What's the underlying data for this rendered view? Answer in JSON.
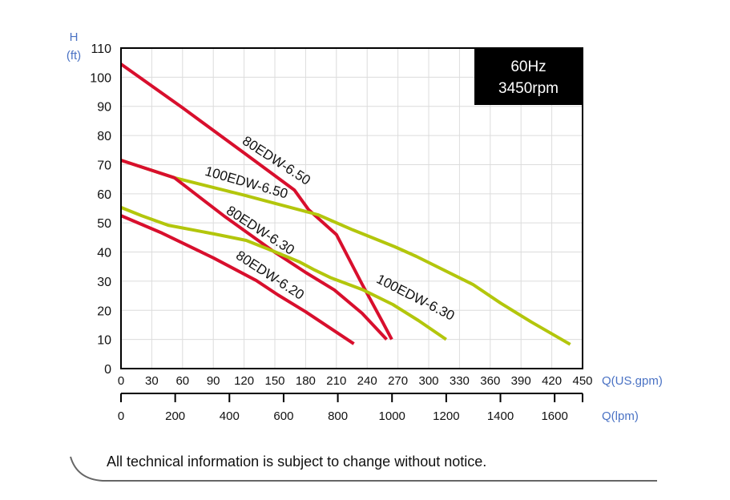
{
  "chart_data": {
    "type": "line",
    "badge": {
      "line1": "60Hz",
      "line2": "3450rpm"
    },
    "ylabel": {
      "line1": "H",
      "line2": "(ft)"
    },
    "xlabel": "Q(US.gpm)",
    "x2label": "Q(lpm)",
    "xlim": [
      0,
      450
    ],
    "ylim": [
      0,
      110
    ],
    "x2lim": [
      0,
      1703
    ],
    "grid": true,
    "xticks": [
      "0",
      "30",
      "60",
      "90",
      "120",
      "150",
      "180",
      "210",
      "240",
      "270",
      "300",
      "330",
      "360",
      "390",
      "420",
      "450"
    ],
    "yticks": [
      "0",
      "10",
      "20",
      "30",
      "40",
      "50",
      "60",
      "70",
      "80",
      "90",
      "100",
      "110"
    ],
    "x2ticks": [
      "0",
      "200",
      "400",
      "600",
      "800",
      "1000",
      "1200",
      "1400",
      "1600"
    ],
    "colors": {
      "red": "#d80f2d",
      "green": "#b3c60c",
      "axis_label": "#4a72c4"
    },
    "series": [
      {
        "name": "80EDW-6.50",
        "color": "red",
        "points": [
          [
            0,
            104.5
          ],
          [
            60,
            89.5
          ],
          [
            120,
            74
          ],
          [
            169,
            61.3
          ],
          [
            183,
            54.5
          ],
          [
            210,
            46
          ],
          [
            235,
            29
          ],
          [
            255,
            16
          ],
          [
            264,
            10
          ]
        ]
      },
      {
        "name": "100EDW-6.50",
        "color": "green",
        "points": [
          [
            0,
            71.5
          ],
          [
            52,
            65.5
          ],
          [
            120,
            59.5
          ],
          [
            192,
            52.8
          ],
          [
            226,
            47.6
          ],
          [
            267,
            41.8
          ],
          [
            288,
            38.5
          ],
          [
            343,
            28.9
          ],
          [
            370,
            22.5
          ],
          [
            400,
            16
          ],
          [
            438,
            8.3
          ]
        ]
      },
      {
        "name": "80EDW-6.30",
        "color": "red",
        "points": [
          [
            0,
            71.5
          ],
          [
            52,
            65.5
          ],
          [
            100,
            52.5
          ],
          [
            148,
            40.4
          ],
          [
            180,
            33
          ],
          [
            208,
            27
          ],
          [
            235,
            19
          ],
          [
            259,
            10
          ]
        ]
      },
      {
        "name": "80EDW-6.20",
        "color": "red",
        "points": [
          [
            0,
            52.5
          ],
          [
            40,
            46.5
          ],
          [
            90,
            38
          ],
          [
            132,
            30.2
          ],
          [
            153,
            25.3
          ],
          [
            180,
            19.5
          ],
          [
            227,
            8.5
          ]
        ]
      },
      {
        "name": "100EDW-6.30",
        "color": "green",
        "points": [
          [
            0,
            55.3
          ],
          [
            20,
            52.5
          ],
          [
            46,
            49.2
          ],
          [
            91,
            46.2
          ],
          [
            122,
            44
          ],
          [
            148,
            40.4
          ],
          [
            174,
            36.6
          ],
          [
            189,
            33.8
          ],
          [
            205,
            31.1
          ],
          [
            236,
            27
          ],
          [
            265,
            22
          ],
          [
            290,
            16.5
          ],
          [
            317,
            10
          ]
        ]
      }
    ]
  },
  "footer": {
    "notice": "All technical information is subject to change without notice."
  }
}
